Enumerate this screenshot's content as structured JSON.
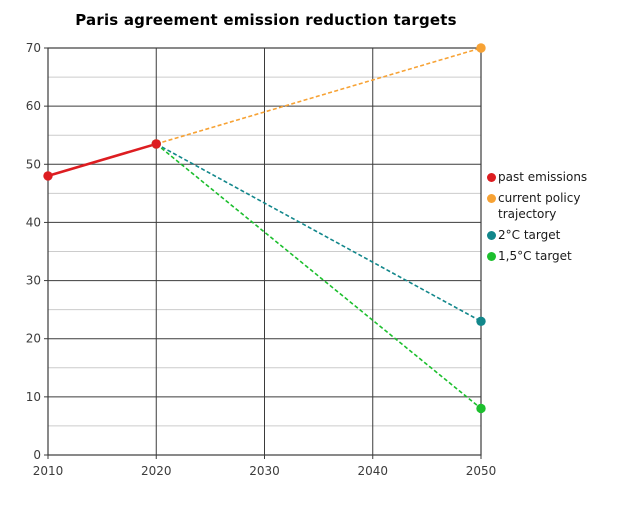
{
  "title": "Paris agreement emission reduction targets",
  "chart_data": {
    "type": "line",
    "title": "Paris agreement emission reduction targets",
    "xlabel": "",
    "ylabel": "",
    "xlim": [
      2010,
      2050
    ],
    "ylim": [
      0,
      70
    ],
    "x_ticks": [
      2010,
      2020,
      2030,
      2040,
      2050
    ],
    "y_ticks": [
      0,
      10,
      20,
      30,
      40,
      50,
      60,
      70
    ],
    "y_minor_step": 5,
    "grid": {
      "major_color": "#3b3b3b",
      "minor_color": "#cccccc",
      "border_color": "#3b3b3b"
    },
    "legend_position": "right",
    "series": [
      {
        "name": "past emissions",
        "color": "#dd1d21",
        "line_style": "solid",
        "points": [
          [
            2010,
            48
          ],
          [
            2020,
            53.5
          ]
        ]
      },
      {
        "name": "current policy trajectory",
        "color": "#f7a234",
        "line_style": "dashed",
        "points": [
          [
            2020,
            53.5
          ],
          [
            2050,
            70
          ]
        ]
      },
      {
        "name": "2°C target",
        "color": "#12878b",
        "line_style": "dashed",
        "points": [
          [
            2020,
            53.5
          ],
          [
            2050,
            23
          ]
        ]
      },
      {
        "name": "1,5°C target",
        "color": "#1dbf2e",
        "line_style": "dashed",
        "points": [
          [
            2020,
            53.5
          ],
          [
            2050,
            8
          ]
        ]
      }
    ]
  }
}
